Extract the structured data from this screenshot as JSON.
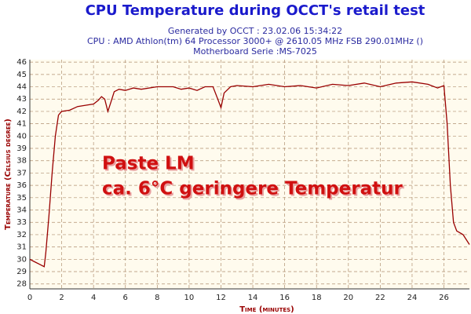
{
  "chart_data": {
    "type": "line",
    "title": "CPU Temperature during OCCT's retail test",
    "subtitles": [
      "Generated by OCCT : 23.02.06 15:34:22",
      "CPU : AMD Athlon(tm) 64 Processor 3000+ @ 2610.05 MHz FSB 290.01MHz ()",
      "Motherboard Serie :MS-7025"
    ],
    "x_label": "Time (minutes)",
    "y_label": "Temperature (Celsius degree)",
    "annotations": [
      "Paste LM",
      "ca. 6°C geringere Temperatur"
    ],
    "x": [
      0,
      0.3,
      0.6,
      0.9,
      1.0,
      1.2,
      1.4,
      1.6,
      1.8,
      2.0,
      2.5,
      3.0,
      3.5,
      4.0,
      4.3,
      4.5,
      4.7,
      4.9,
      5.1,
      5.3,
      5.6,
      6,
      6.5,
      7,
      8,
      9,
      9.5,
      10,
      10.5,
      11,
      11.5,
      11.8,
      12.0,
      12.2,
      12.6,
      13,
      14,
      15,
      16,
      17,
      18,
      19,
      20,
      21,
      22,
      23,
      24,
      25,
      25.6,
      26,
      26.2,
      26.4,
      26.6,
      26.8,
      27.2,
      27.6
    ],
    "series": [
      {
        "name": "CPU",
        "color": "#990000",
        "values": [
          30.0,
          29.8,
          29.6,
          29.4,
          30.5,
          33.5,
          37,
          40,
          41.7,
          42.0,
          42.1,
          42.4,
          42.5,
          42.6,
          42.9,
          43.2,
          43.0,
          42.0,
          42.8,
          43.6,
          43.8,
          43.7,
          43.9,
          43.8,
          44.0,
          44.0,
          43.8,
          43.9,
          43.7,
          44.0,
          44.0,
          43.0,
          42.3,
          43.5,
          44.0,
          44.1,
          44.0,
          44.2,
          44.0,
          44.1,
          43.9,
          44.2,
          44.1,
          44.3,
          44.0,
          44.3,
          44.4,
          44.2,
          43.9,
          44.1,
          41,
          36,
          33,
          32.3,
          32.0,
          31.2
        ]
      }
    ],
    "xlim": [
      0,
      27.6
    ],
    "xticks": [
      0,
      2,
      4,
      6,
      8,
      10,
      12,
      14,
      16,
      18,
      20,
      22,
      24,
      26
    ],
    "ylim": [
      27.6,
      46.2
    ],
    "yticks": [
      28,
      29,
      30,
      31,
      32,
      33,
      34,
      35,
      36,
      37,
      38,
      39,
      40,
      41,
      42,
      43,
      44,
      45,
      46
    ],
    "grid": true
  }
}
